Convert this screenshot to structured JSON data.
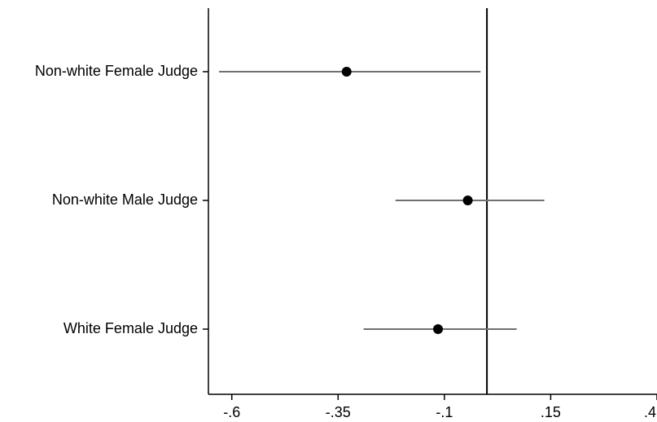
{
  "chart_data": {
    "type": "scatter",
    "orientation": "horizontal",
    "categories": [
      "Non-white Female Judge",
      "Non-white Male Judge",
      "White Female Judge"
    ],
    "estimates": [
      -0.33,
      -0.045,
      -0.115
    ],
    "ci_low": [
      -0.63,
      -0.215,
      -0.29
    ],
    "ci_high": [
      -0.015,
      0.135,
      0.07
    ],
    "x_ticks": [
      -0.6,
      -0.35,
      -0.1,
      0.15,
      0.4
    ],
    "x_tick_labels": [
      "-.6",
      "-.35",
      "-.1",
      ".15",
      ".4"
    ],
    "xlim": [
      -0.655,
      0.4
    ],
    "reference_line_x": 0,
    "colors": {
      "point": "#000000",
      "ci_line": "#707070",
      "axis": "#000000",
      "reference_line": "#000000"
    },
    "grid": false,
    "legend": "none",
    "title": "",
    "xlabel": "",
    "ylabel": ""
  }
}
